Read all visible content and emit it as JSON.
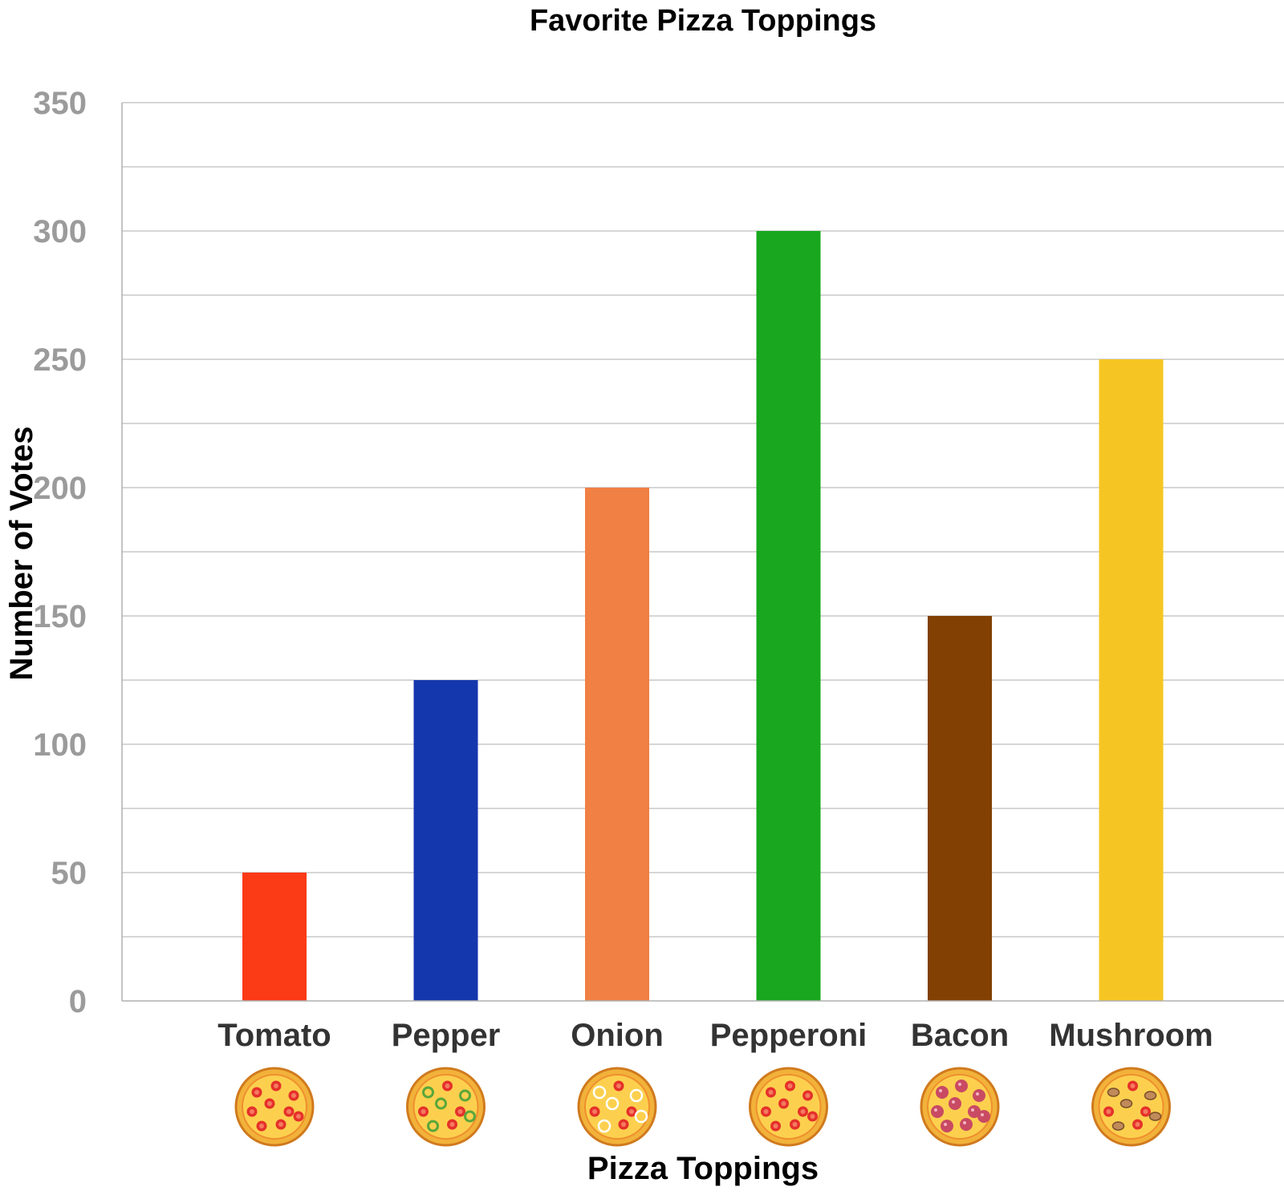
{
  "chart_data": {
    "type": "bar",
    "title": "Favorite Pizza Toppings",
    "xlabel": "Pizza Toppings",
    "ylabel": "Number of Votes",
    "categories": [
      "Tomato",
      "Pepper",
      "Onion",
      "Pepperoni",
      "Bacon",
      "Mushroom"
    ],
    "values": [
      50,
      125,
      200,
      300,
      150,
      250
    ],
    "colors": [
      "#fb3a16",
      "#1537ad",
      "#f08044",
      "#18a71f",
      "#834003",
      "#f5c623"
    ],
    "ylim": [
      0,
      350
    ],
    "yticks": [
      0,
      50,
      100,
      150,
      200,
      250,
      300,
      350
    ],
    "minor_gridlines": true,
    "legend": "none",
    "category_icons": [
      "pizza-tomato-icon",
      "pizza-pepper-icon",
      "pizza-onion-icon",
      "pizza-pepperoni-icon",
      "pizza-bacon-icon",
      "pizza-mushroom-icon"
    ]
  }
}
